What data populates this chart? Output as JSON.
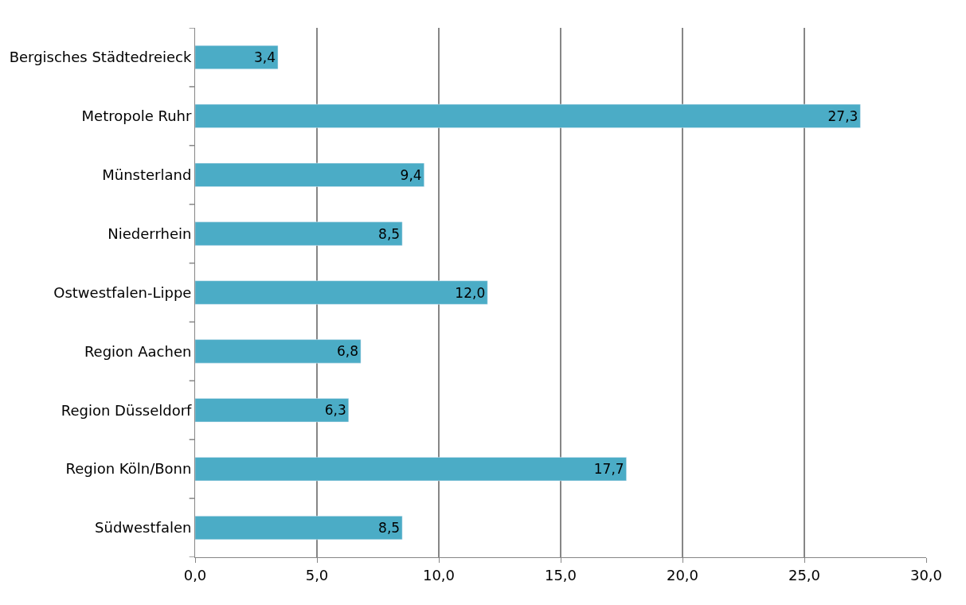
{
  "chart_data": {
    "type": "bar",
    "orientation": "horizontal",
    "categories": [
      "Bergisches Städtedreieck",
      "Metropole Ruhr",
      "Münsterland",
      "Niederrhein",
      "Ostwestfalen-Lippe",
      "Region Aachen",
      "Region Düsseldorf",
      "Region Köln/Bonn",
      "Südwestfalen"
    ],
    "values": [
      3.4,
      27.3,
      9.4,
      8.5,
      12.0,
      6.8,
      6.3,
      17.7,
      8.5
    ],
    "value_labels": [
      "3,4",
      "27,3",
      "9,4",
      "8,5",
      "12,0",
      "6,8",
      "6,3",
      "17,7",
      "8,5"
    ],
    "color": "#4bacc6",
    "xlim": [
      0,
      30
    ],
    "xticks": [
      {
        "value": 0,
        "label": "0,0"
      },
      {
        "value": 5,
        "label": "5,0"
      },
      {
        "value": 10,
        "label": "10,0"
      },
      {
        "value": 15,
        "label": "15,0"
      },
      {
        "value": 20,
        "label": "20,0"
      },
      {
        "value": 25,
        "label": "25,0"
      },
      {
        "value": 30,
        "label": "30,0"
      }
    ],
    "grid": "x"
  }
}
